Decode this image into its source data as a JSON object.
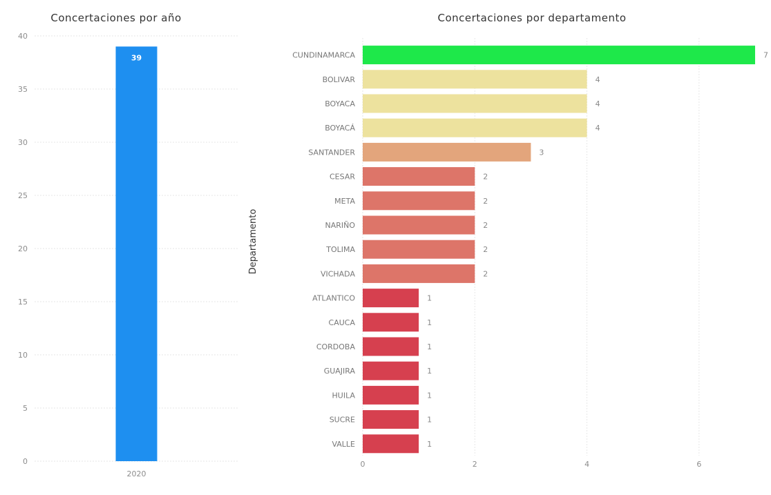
{
  "chart_data": [
    {
      "type": "bar",
      "orientation": "vertical",
      "title": "Concertaciones por año",
      "categories": [
        "2020"
      ],
      "values": [
        39
      ],
      "data_labels": [
        "39"
      ],
      "yticks": [
        "0",
        "5",
        "10",
        "15",
        "20",
        "25",
        "30",
        "35",
        "40"
      ],
      "ylim": [
        0,
        40
      ],
      "grid": true,
      "color": "#1e8ff0"
    },
    {
      "type": "bar",
      "orientation": "horizontal",
      "title": "Concertaciones por departamento",
      "ylabel": "Departamento",
      "categories": [
        "CUNDINAMARCA",
        "BOLIVAR",
        "BOYACA",
        "BOYACÁ",
        "SANTANDER",
        "CESAR",
        "META",
        "NARIÑO",
        "TOLIMA",
        "VICHADA",
        "ATLANTICO",
        "CAUCA",
        "CORDOBA",
        "GUAJIRA",
        "HUILA",
        "SUCRE",
        "VALLE"
      ],
      "values": [
        7,
        4,
        4,
        4,
        3,
        2,
        2,
        2,
        2,
        2,
        1,
        1,
        1,
        1,
        1,
        1,
        1
      ],
      "data_labels": [
        "7",
        "4",
        "4",
        "4",
        "3",
        "2",
        "2",
        "2",
        "2",
        "2",
        "1",
        "1",
        "1",
        "1",
        "1",
        "1",
        "1"
      ],
      "xticks": [
        "0",
        "2",
        "4",
        "6"
      ],
      "xlim": [
        0,
        7
      ],
      "grid": true,
      "colors": [
        "#1ee84a",
        "#ede29e",
        "#ede29e",
        "#ede29e",
        "#e3a57c",
        "#dd7569",
        "#dd7569",
        "#dd7569",
        "#dd7569",
        "#dd7569",
        "#d6404f",
        "#d6404f",
        "#d6404f",
        "#d6404f",
        "#d6404f",
        "#d6404f",
        "#d6404f"
      ]
    }
  ]
}
